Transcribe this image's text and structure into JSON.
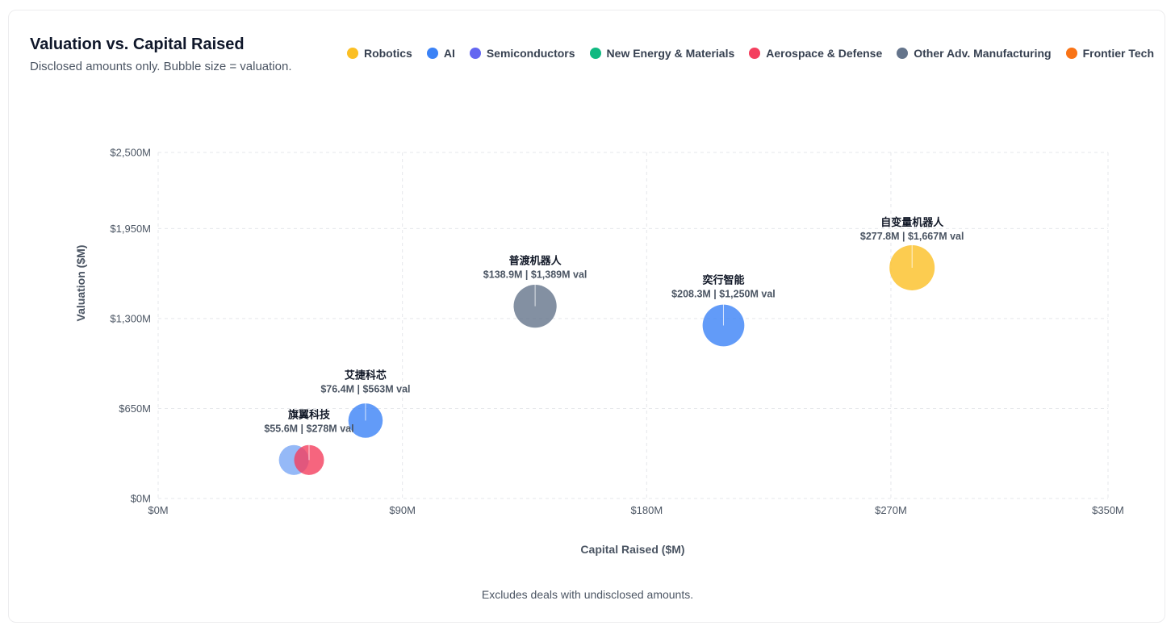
{
  "chart_data": {
    "type": "scatter",
    "title": "Valuation vs. Capital Raised",
    "subtitle": "Disclosed amounts only. Bubble size = valuation.",
    "xlabel": "Capital Raised ($M)",
    "ylabel": "Valuation ($M)",
    "xlim": [
      0,
      350
    ],
    "ylim": [
      0,
      2500
    ],
    "x_ticks": [
      {
        "value": 0,
        "label": "$0M"
      },
      {
        "value": 90,
        "label": "$90M"
      },
      {
        "value": 180,
        "label": "$180M"
      },
      {
        "value": 270,
        "label": "$270M"
      },
      {
        "value": 350,
        "label": "$350M"
      }
    ],
    "y_ticks": [
      {
        "value": 0,
        "label": "$0M"
      },
      {
        "value": 650,
        "label": "$650M"
      },
      {
        "value": 1300,
        "label": "$1,300M"
      },
      {
        "value": 1950,
        "label": "$1,950M"
      },
      {
        "value": 2500,
        "label": "$2,500M"
      }
    ],
    "grid": true,
    "legend": [
      {
        "name": "Robotics",
        "color": "#fbbf24"
      },
      {
        "name": "AI",
        "color": "#3b82f6"
      },
      {
        "name": "Semiconductors",
        "color": "#6366f1"
      },
      {
        "name": "New Energy & Materials",
        "color": "#10b981"
      },
      {
        "name": "Aerospace & Defense",
        "color": "#f43f5e"
      },
      {
        "name": "Other Adv. Manufacturing",
        "color": "#64748b"
      },
      {
        "name": "Frontier Tech",
        "color": "#f97316"
      }
    ],
    "points": [
      {
        "name": "",
        "category": "AI",
        "color": "#7aa7f5",
        "x": 50,
        "y": 278,
        "sub": ""
      },
      {
        "name": "旗翼科技",
        "category": "Aerospace & Defense",
        "color": "#f43f5e",
        "x": 55.6,
        "y": 278,
        "sub": "$55.6M | $278M val"
      },
      {
        "name": "艾捷科芯",
        "category": "AI",
        "color": "#3b82f6",
        "x": 76.4,
        "y": 563,
        "sub": "$76.4M | $563M val"
      },
      {
        "name": "普渡机器人",
        "category": "Other Adv. Manufacturing",
        "color": "#64748b",
        "x": 138.9,
        "y": 1389,
        "sub": "$138.9M | $1,389M val"
      },
      {
        "name": "奕行智能",
        "category": "AI",
        "color": "#3b82f6",
        "x": 208.3,
        "y": 1250,
        "sub": "$208.3M | $1,250M val"
      },
      {
        "name": "自变量机器人",
        "category": "Robotics",
        "color": "#fbbf24",
        "x": 277.8,
        "y": 1667,
        "sub": "$277.8M | $1,667M val"
      }
    ],
    "footnote": "Excludes deals with undisclosed amounts."
  }
}
